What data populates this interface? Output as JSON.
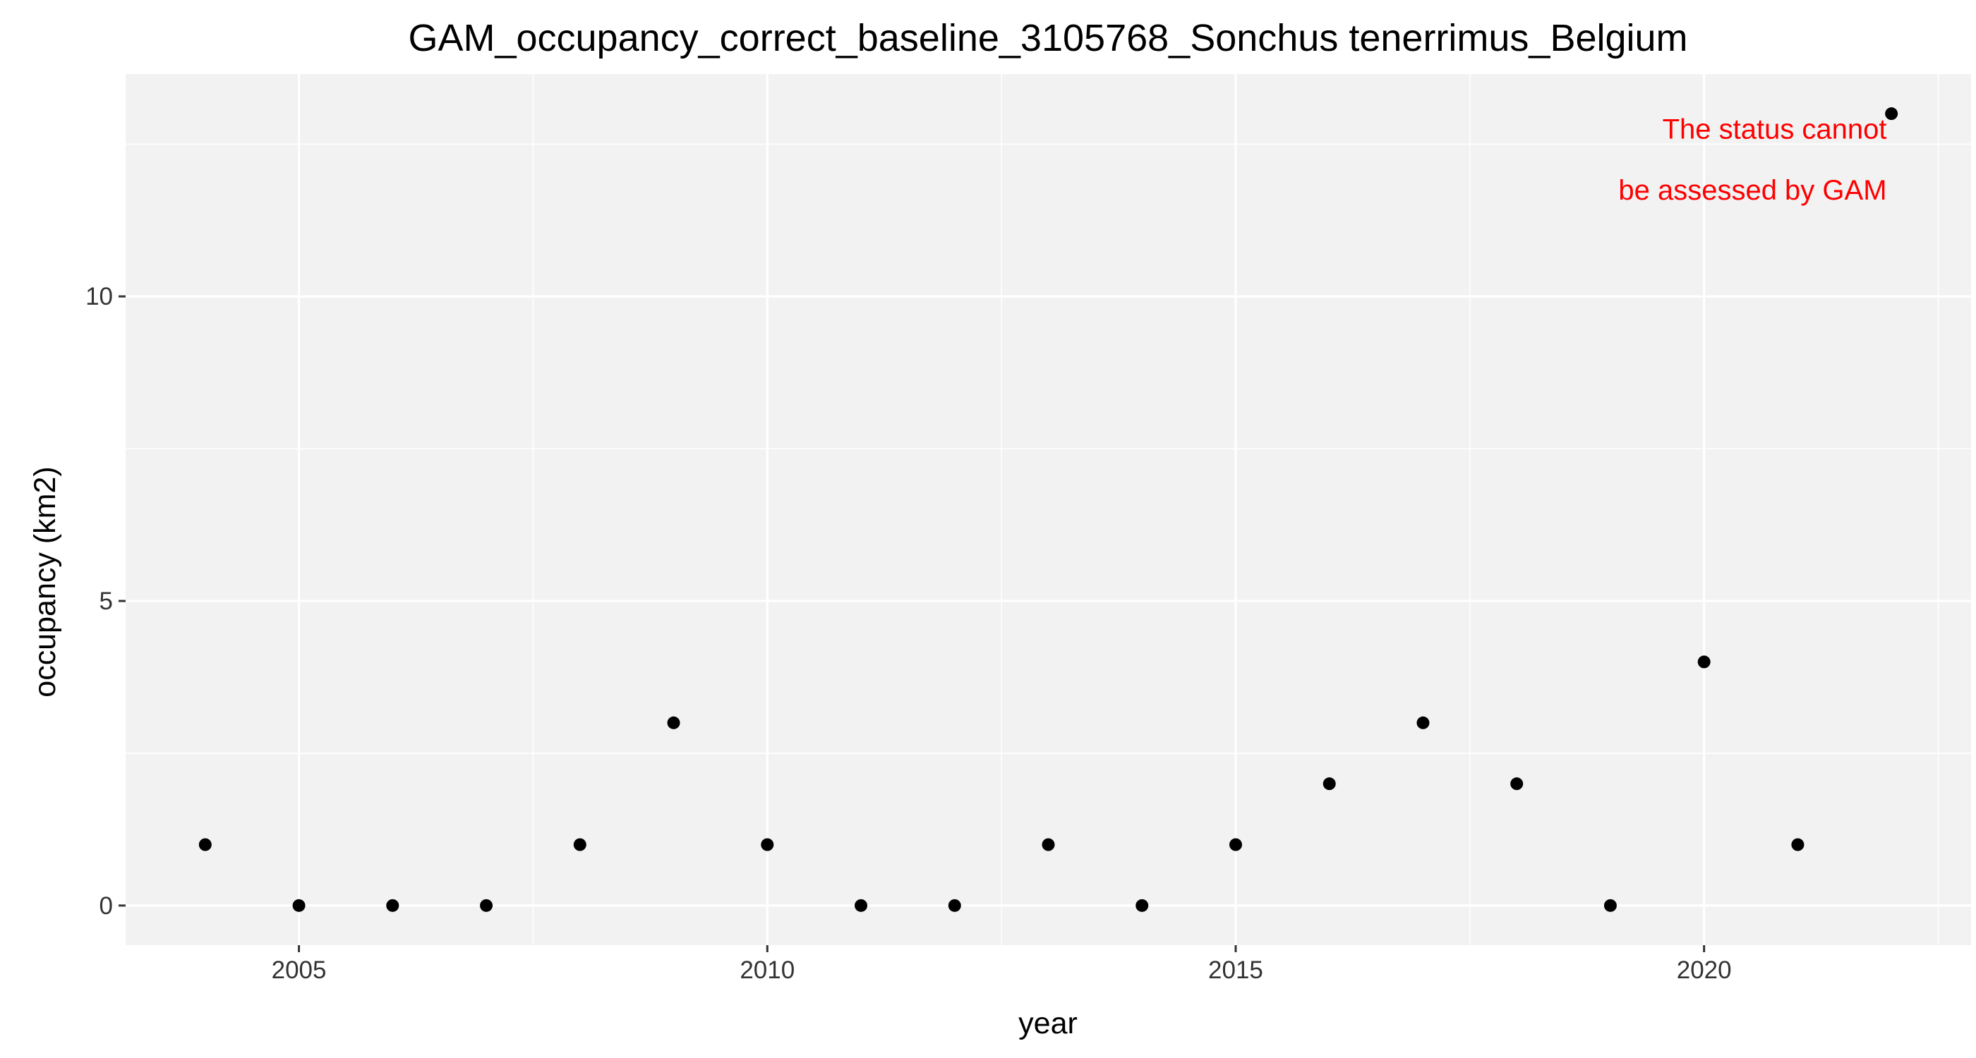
{
  "chart_data": {
    "type": "scatter",
    "title": "GAM_occupancy_correct_baseline_3105768_Sonchus tenerrimus_Belgium",
    "xlabel": "year",
    "ylabel": "occupancy (km2)",
    "xlim": [
      2003.15,
      2022.85
    ],
    "ylim": [
      -0.65,
      13.65
    ],
    "x_ticks": [
      2005,
      2010,
      2015,
      2020
    ],
    "y_ticks": [
      0,
      5,
      10
    ],
    "x_tick_labels": [
      "2005",
      "2010",
      "2015",
      "2020"
    ],
    "y_tick_labels": [
      "0",
      "5",
      "10"
    ],
    "x_minor_gridlines": [
      2007.5,
      2012.5,
      2017.5,
      2022.5
    ],
    "y_minor_gridlines": [
      2.5,
      7.5,
      12.5
    ],
    "grid": true,
    "legend": "none",
    "point_color": "#000000",
    "panel_background": "#f2f2f2",
    "gridline_color": "#ffffff",
    "points": [
      {
        "x": 2004,
        "y": 1
      },
      {
        "x": 2005,
        "y": 0
      },
      {
        "x": 2006,
        "y": 0
      },
      {
        "x": 2007,
        "y": 0
      },
      {
        "x": 2008,
        "y": 1
      },
      {
        "x": 2009,
        "y": 3
      },
      {
        "x": 2010,
        "y": 1
      },
      {
        "x": 2011,
        "y": 0
      },
      {
        "x": 2012,
        "y": 0
      },
      {
        "x": 2013,
        "y": 1
      },
      {
        "x": 2014,
        "y": 0
      },
      {
        "x": 2015,
        "y": 1
      },
      {
        "x": 2016,
        "y": 2
      },
      {
        "x": 2017,
        "y": 3
      },
      {
        "x": 2018,
        "y": 2
      },
      {
        "x": 2019,
        "y": 0
      },
      {
        "x": 2020,
        "y": 4
      },
      {
        "x": 2021,
        "y": 1
      },
      {
        "x": 2022,
        "y": 13
      }
    ],
    "annotation": {
      "lines": [
        "The status cannot",
        "be assessed by GAM"
      ],
      "color": "#ff0000",
      "anchor_x": 2021.95,
      "anchor_y": 12.25,
      "line_offset": -1
    }
  }
}
